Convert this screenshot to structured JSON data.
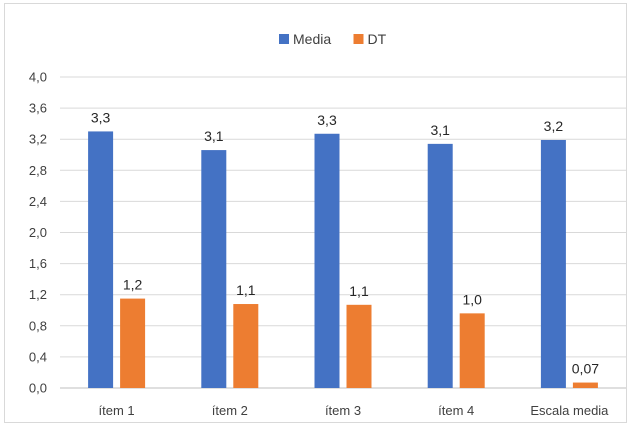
{
  "chart_data": {
    "type": "bar",
    "categories": [
      "ítem 1",
      "ítem 2",
      "ítem 3",
      "ítem 4",
      "Escala media"
    ],
    "series": [
      {
        "name": "Media",
        "color": "#4472C4",
        "values": [
          3.3,
          3.06,
          3.27,
          3.14,
          3.19
        ],
        "labels": [
          "3,3",
          "3,1",
          "3,3",
          "3,1",
          "3,2"
        ]
      },
      {
        "name": "DT",
        "color": "#ED7D31",
        "values": [
          1.15,
          1.08,
          1.07,
          0.96,
          0.07
        ],
        "labels": [
          "1,2",
          "1,1",
          "1,1",
          "1,0",
          "0,07"
        ]
      }
    ],
    "ylim": [
      0,
      4.0
    ],
    "yticks": [
      "0,0",
      "0,4",
      "0,8",
      "1,2",
      "1,6",
      "2,0",
      "2,4",
      "2,8",
      "3,2",
      "3,6",
      "4,0"
    ],
    "grid": true,
    "legend_position": "top-center",
    "title": "",
    "xlabel": "",
    "ylabel": ""
  }
}
